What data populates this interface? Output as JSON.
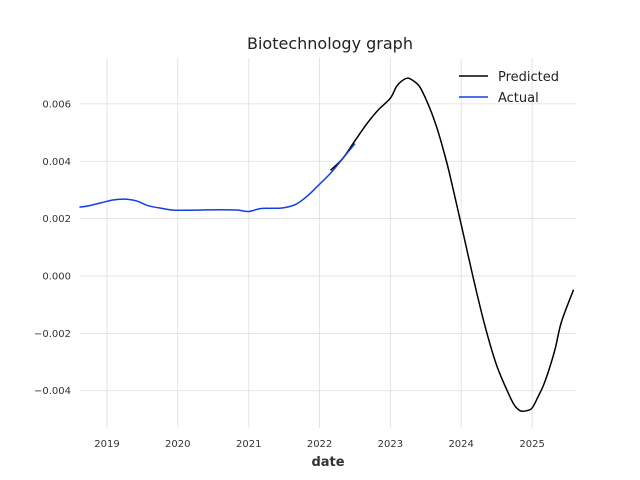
{
  "chart_data": {
    "type": "line",
    "title": "Biotechnology graph",
    "xlabel": "date",
    "ylabel": "",
    "x_is_date": true,
    "xlim": [
      "2018-08-15",
      "2025-08-15"
    ],
    "ylim": [
      -0.0053,
      0.0076
    ],
    "xticks": [
      "2019",
      "2020",
      "2021",
      "2022",
      "2023",
      "2024",
      "2025"
    ],
    "yticks": [
      "0.006",
      "0.004",
      "0.002",
      "0.000",
      "−0.002",
      "−0.004"
    ],
    "ytick_values": [
      0.006,
      0.004,
      0.002,
      0.0,
      -0.002,
      -0.004
    ],
    "grid": true,
    "legend_position": "top-right",
    "series": [
      {
        "name": "Predicted",
        "color": "#000000",
        "points": [
          [
            "2022-03-01",
            0.0037
          ],
          [
            "2022-05-01",
            0.0041
          ],
          [
            "2022-07-01",
            0.0047
          ],
          [
            "2022-09-01",
            0.0053
          ],
          [
            "2022-11-01",
            0.0058
          ],
          [
            "2023-01-01",
            0.0062
          ],
          [
            "2023-02-01",
            0.0066
          ],
          [
            "2023-03-01",
            0.0068
          ],
          [
            "2023-04-01",
            0.0069
          ],
          [
            "2023-05-01",
            0.0068
          ],
          [
            "2023-06-01",
            0.0066
          ],
          [
            "2023-07-01",
            0.0062
          ],
          [
            "2023-08-01",
            0.0057
          ],
          [
            "2023-09-01",
            0.0051
          ],
          [
            "2023-10-01",
            0.0044
          ],
          [
            "2023-11-01",
            0.0036
          ],
          [
            "2024-01-01",
            0.0018
          ],
          [
            "2024-03-01",
            0.0
          ],
          [
            "2024-05-01",
            -0.0017
          ],
          [
            "2024-07-01",
            -0.0031
          ],
          [
            "2024-09-01",
            -0.0041
          ],
          [
            "2024-10-01",
            -0.0045
          ],
          [
            "2024-11-01",
            -0.0047
          ],
          [
            "2024-12-01",
            -0.0047
          ],
          [
            "2025-01-01",
            -0.0046
          ],
          [
            "2025-02-01",
            -0.0042
          ],
          [
            "2025-03-01",
            -0.0038
          ],
          [
            "2025-04-01",
            -0.0032
          ],
          [
            "2025-05-01",
            -0.0025
          ],
          [
            "2025-06-01",
            -0.0016
          ],
          [
            "2025-08-01",
            -0.0005
          ]
        ]
      },
      {
        "name": "Actual",
        "color": "#1040e0",
        "points": [
          [
            "2018-08-15",
            0.0024
          ],
          [
            "2018-10-01",
            0.00245
          ],
          [
            "2018-12-01",
            0.00255
          ],
          [
            "2019-02-01",
            0.00265
          ],
          [
            "2019-04-01",
            0.00268
          ],
          [
            "2019-06-01",
            0.00262
          ],
          [
            "2019-08-01",
            0.00245
          ],
          [
            "2019-10-01",
            0.00237
          ],
          [
            "2019-12-01",
            0.0023
          ],
          [
            "2020-02-01",
            0.00229
          ],
          [
            "2020-05-01",
            0.0023
          ],
          [
            "2020-08-01",
            0.00231
          ],
          [
            "2020-11-01",
            0.0023
          ],
          [
            "2021-01-01",
            0.00225
          ],
          [
            "2021-03-01",
            0.00235
          ],
          [
            "2021-05-01",
            0.00236
          ],
          [
            "2021-07-01",
            0.00238
          ],
          [
            "2021-09-01",
            0.0025
          ],
          [
            "2021-11-01",
            0.0028
          ],
          [
            "2022-01-01",
            0.0032
          ],
          [
            "2022-03-01",
            0.0036
          ],
          [
            "2022-05-01",
            0.0041
          ],
          [
            "2022-07-01",
            0.0046
          ]
        ]
      }
    ]
  }
}
